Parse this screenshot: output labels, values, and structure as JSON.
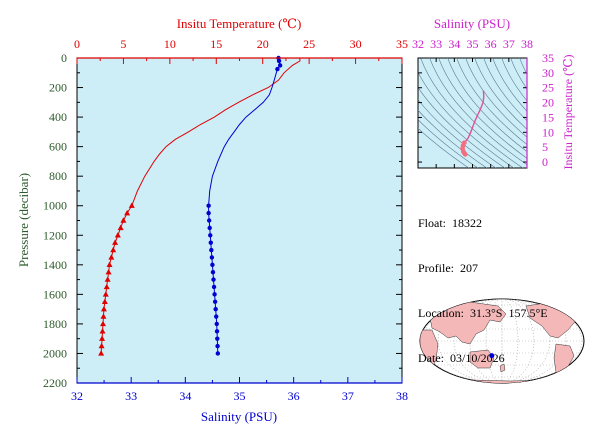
{
  "colors": {
    "plot_background": "#cdeef7",
    "temperature": "#e00000",
    "salinity": "#0000d0",
    "pressure_axis": "#2d5a2d",
    "inset_axis": "#cc22cc",
    "land": "#f4b8b8",
    "ocean": "#ffffff",
    "float_marker": "#0000ff"
  },
  "chart_data": [
    {
      "type": "line",
      "pressure_label": "Pressure (decibar)",
      "temperature_label": "Insitu Temperature (℃)",
      "salinity_label": "Salinity (PSU)",
      "pressure_ticks": [
        "0",
        "200",
        "400",
        "600",
        "800",
        "1000",
        "1200",
        "1400",
        "1600",
        "1800",
        "2000",
        "2200"
      ],
      "temperature_ticks": [
        "0",
        "5",
        "10",
        "15",
        "20",
        "25",
        "30",
        "35"
      ],
      "salinity_ticks": [
        "32",
        "33",
        "34",
        "35",
        "36",
        "37",
        "38"
      ],
      "pressure_range": [
        0,
        2200
      ],
      "temperature_range": [
        0,
        35
      ],
      "salinity_range": [
        32,
        38
      ],
      "series": [
        {
          "name": "temperature",
          "pressure": [
            0,
            20,
            50,
            100,
            150,
            200,
            250,
            300,
            350,
            400,
            450,
            500,
            550,
            600,
            650,
            700,
            800,
            900,
            1000,
            1050,
            1100,
            1150,
            1200,
            1250,
            1300,
            1350,
            1400,
            1450,
            1500,
            1600,
            1700,
            1800,
            1900,
            2000
          ],
          "temperature": [
            24.0,
            24.0,
            23.2,
            22.3,
            21.7,
            20.6,
            18.9,
            17.4,
            16.0,
            14.8,
            13.3,
            12.0,
            10.6,
            9.6,
            8.9,
            8.3,
            7.3,
            6.5,
            5.9,
            5.4,
            5.0,
            4.7,
            4.4,
            4.1,
            3.9,
            3.7,
            3.5,
            3.4,
            3.3,
            3.1,
            2.9,
            2.8,
            2.7,
            2.6
          ],
          "marker": "triangle",
          "marker_from_pressure": 1000
        },
        {
          "name": "salinity",
          "pressure": [
            0,
            20,
            50,
            75,
            100,
            150,
            200,
            250,
            300,
            350,
            400,
            450,
            500,
            550,
            600,
            700,
            800,
            900,
            1000,
            1050,
            1100,
            1150,
            1200,
            1250,
            1300,
            1350,
            1400,
            1450,
            1500,
            1600,
            1700,
            1800,
            1900,
            2000
          ],
          "salinity": [
            35.72,
            35.73,
            35.75,
            35.7,
            35.68,
            35.64,
            35.6,
            35.55,
            35.44,
            35.28,
            35.12,
            35.0,
            34.9,
            34.8,
            34.72,
            34.6,
            34.5,
            34.45,
            34.43,
            34.43,
            34.44,
            34.45,
            34.46,
            34.47,
            34.48,
            34.49,
            34.5,
            34.51,
            34.52,
            34.54,
            34.56,
            34.58,
            34.59,
            34.6
          ],
          "marker": "circle",
          "marker_pressures": [
            0,
            20,
            50,
            75,
            1000,
            1050,
            1100,
            1150,
            1200,
            1250,
            1300,
            1350,
            1400,
            1450,
            1500,
            1550,
            1600,
            1650,
            1700,
            1750,
            1800,
            1850,
            1900,
            1950,
            2000
          ]
        }
      ]
    },
    {
      "type": "scatter",
      "title": "Salinity (PSU)",
      "ylabel": "Insitu Temperature (℃)",
      "salinity_ticks": [
        "32",
        "33",
        "34",
        "35",
        "36",
        "37",
        "38"
      ],
      "temperature_ticks": [
        "0",
        "5",
        "10",
        "15",
        "20",
        "25",
        "30",
        "35"
      ],
      "xlim": [
        32,
        38
      ],
      "ylim": [
        -2,
        35
      ],
      "points": [
        {
          "salinity": 35.6,
          "temperature": 24.0
        },
        {
          "salinity": 35.62,
          "temperature": 22.0
        },
        {
          "salinity": 35.58,
          "temperature": 20.0
        },
        {
          "salinity": 35.45,
          "temperature": 18.0
        },
        {
          "salinity": 35.3,
          "temperature": 16.0
        },
        {
          "salinity": 35.15,
          "temperature": 14.0
        },
        {
          "salinity": 35.02,
          "temperature": 12.0
        },
        {
          "salinity": 34.9,
          "temperature": 10.0
        },
        {
          "salinity": 34.75,
          "temperature": 8.0
        },
        {
          "salinity": 34.55,
          "temperature": 6.5
        },
        {
          "salinity": 34.48,
          "temperature": 5.5
        },
        {
          "salinity": 34.45,
          "temperature": 4.5
        },
        {
          "salinity": 34.5,
          "temperature": 3.5
        },
        {
          "salinity": 34.55,
          "temperature": 3.0
        },
        {
          "salinity": 34.6,
          "temperature": 2.6
        }
      ]
    }
  ],
  "info": {
    "float": "Float:  18322",
    "profile": "Profile:  207",
    "location": "Location:  31.3°S  157.5°E",
    "date": "Date:  03/10/2026"
  },
  "map": {
    "float_lat": -31.3,
    "float_lon": 157.5
  }
}
